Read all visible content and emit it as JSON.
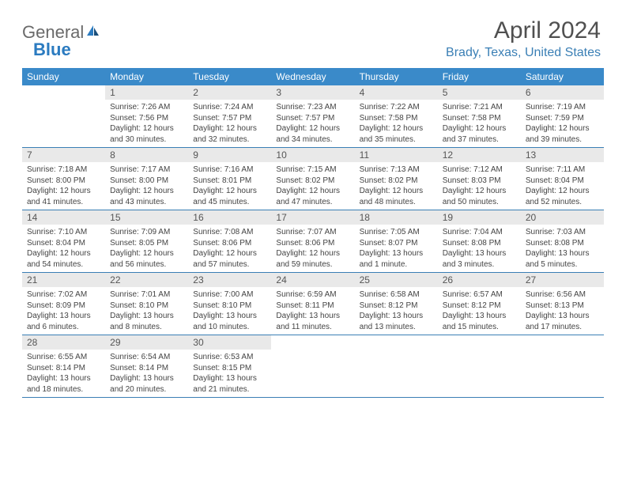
{
  "logo": {
    "part1": "General",
    "part2": "Blue"
  },
  "header": {
    "month": "April 2024",
    "location": "Brady, Texas, United States"
  },
  "colors": {
    "header_band": "#3a8ac9",
    "daynum_bg": "#e9e9e9",
    "location_color": "#3a7fb5",
    "rule_color": "#3a7fb5",
    "title_color": "#505050"
  },
  "dow": [
    "Sunday",
    "Monday",
    "Tuesday",
    "Wednesday",
    "Thursday",
    "Friday",
    "Saturday"
  ],
  "weeks": [
    [
      {
        "num": "",
        "sunrise": "",
        "sunset": "",
        "daylight": ""
      },
      {
        "num": "1",
        "sunrise": "Sunrise: 7:26 AM",
        "sunset": "Sunset: 7:56 PM",
        "daylight": "Daylight: 12 hours and 30 minutes."
      },
      {
        "num": "2",
        "sunrise": "Sunrise: 7:24 AM",
        "sunset": "Sunset: 7:57 PM",
        "daylight": "Daylight: 12 hours and 32 minutes."
      },
      {
        "num": "3",
        "sunrise": "Sunrise: 7:23 AM",
        "sunset": "Sunset: 7:57 PM",
        "daylight": "Daylight: 12 hours and 34 minutes."
      },
      {
        "num": "4",
        "sunrise": "Sunrise: 7:22 AM",
        "sunset": "Sunset: 7:58 PM",
        "daylight": "Daylight: 12 hours and 35 minutes."
      },
      {
        "num": "5",
        "sunrise": "Sunrise: 7:21 AM",
        "sunset": "Sunset: 7:58 PM",
        "daylight": "Daylight: 12 hours and 37 minutes."
      },
      {
        "num": "6",
        "sunrise": "Sunrise: 7:19 AM",
        "sunset": "Sunset: 7:59 PM",
        "daylight": "Daylight: 12 hours and 39 minutes."
      }
    ],
    [
      {
        "num": "7",
        "sunrise": "Sunrise: 7:18 AM",
        "sunset": "Sunset: 8:00 PM",
        "daylight": "Daylight: 12 hours and 41 minutes."
      },
      {
        "num": "8",
        "sunrise": "Sunrise: 7:17 AM",
        "sunset": "Sunset: 8:00 PM",
        "daylight": "Daylight: 12 hours and 43 minutes."
      },
      {
        "num": "9",
        "sunrise": "Sunrise: 7:16 AM",
        "sunset": "Sunset: 8:01 PM",
        "daylight": "Daylight: 12 hours and 45 minutes."
      },
      {
        "num": "10",
        "sunrise": "Sunrise: 7:15 AM",
        "sunset": "Sunset: 8:02 PM",
        "daylight": "Daylight: 12 hours and 47 minutes."
      },
      {
        "num": "11",
        "sunrise": "Sunrise: 7:13 AM",
        "sunset": "Sunset: 8:02 PM",
        "daylight": "Daylight: 12 hours and 48 minutes."
      },
      {
        "num": "12",
        "sunrise": "Sunrise: 7:12 AM",
        "sunset": "Sunset: 8:03 PM",
        "daylight": "Daylight: 12 hours and 50 minutes."
      },
      {
        "num": "13",
        "sunrise": "Sunrise: 7:11 AM",
        "sunset": "Sunset: 8:04 PM",
        "daylight": "Daylight: 12 hours and 52 minutes."
      }
    ],
    [
      {
        "num": "14",
        "sunrise": "Sunrise: 7:10 AM",
        "sunset": "Sunset: 8:04 PM",
        "daylight": "Daylight: 12 hours and 54 minutes."
      },
      {
        "num": "15",
        "sunrise": "Sunrise: 7:09 AM",
        "sunset": "Sunset: 8:05 PM",
        "daylight": "Daylight: 12 hours and 56 minutes."
      },
      {
        "num": "16",
        "sunrise": "Sunrise: 7:08 AM",
        "sunset": "Sunset: 8:06 PM",
        "daylight": "Daylight: 12 hours and 57 minutes."
      },
      {
        "num": "17",
        "sunrise": "Sunrise: 7:07 AM",
        "sunset": "Sunset: 8:06 PM",
        "daylight": "Daylight: 12 hours and 59 minutes."
      },
      {
        "num": "18",
        "sunrise": "Sunrise: 7:05 AM",
        "sunset": "Sunset: 8:07 PM",
        "daylight": "Daylight: 13 hours and 1 minute."
      },
      {
        "num": "19",
        "sunrise": "Sunrise: 7:04 AM",
        "sunset": "Sunset: 8:08 PM",
        "daylight": "Daylight: 13 hours and 3 minutes."
      },
      {
        "num": "20",
        "sunrise": "Sunrise: 7:03 AM",
        "sunset": "Sunset: 8:08 PM",
        "daylight": "Daylight: 13 hours and 5 minutes."
      }
    ],
    [
      {
        "num": "21",
        "sunrise": "Sunrise: 7:02 AM",
        "sunset": "Sunset: 8:09 PM",
        "daylight": "Daylight: 13 hours and 6 minutes."
      },
      {
        "num": "22",
        "sunrise": "Sunrise: 7:01 AM",
        "sunset": "Sunset: 8:10 PM",
        "daylight": "Daylight: 13 hours and 8 minutes."
      },
      {
        "num": "23",
        "sunrise": "Sunrise: 7:00 AM",
        "sunset": "Sunset: 8:10 PM",
        "daylight": "Daylight: 13 hours and 10 minutes."
      },
      {
        "num": "24",
        "sunrise": "Sunrise: 6:59 AM",
        "sunset": "Sunset: 8:11 PM",
        "daylight": "Daylight: 13 hours and 11 minutes."
      },
      {
        "num": "25",
        "sunrise": "Sunrise: 6:58 AM",
        "sunset": "Sunset: 8:12 PM",
        "daylight": "Daylight: 13 hours and 13 minutes."
      },
      {
        "num": "26",
        "sunrise": "Sunrise: 6:57 AM",
        "sunset": "Sunset: 8:12 PM",
        "daylight": "Daylight: 13 hours and 15 minutes."
      },
      {
        "num": "27",
        "sunrise": "Sunrise: 6:56 AM",
        "sunset": "Sunset: 8:13 PM",
        "daylight": "Daylight: 13 hours and 17 minutes."
      }
    ],
    [
      {
        "num": "28",
        "sunrise": "Sunrise: 6:55 AM",
        "sunset": "Sunset: 8:14 PM",
        "daylight": "Daylight: 13 hours and 18 minutes."
      },
      {
        "num": "29",
        "sunrise": "Sunrise: 6:54 AM",
        "sunset": "Sunset: 8:14 PM",
        "daylight": "Daylight: 13 hours and 20 minutes."
      },
      {
        "num": "30",
        "sunrise": "Sunrise: 6:53 AM",
        "sunset": "Sunset: 8:15 PM",
        "daylight": "Daylight: 13 hours and 21 minutes."
      },
      {
        "num": "",
        "sunrise": "",
        "sunset": "",
        "daylight": ""
      },
      {
        "num": "",
        "sunrise": "",
        "sunset": "",
        "daylight": ""
      },
      {
        "num": "",
        "sunrise": "",
        "sunset": "",
        "daylight": ""
      },
      {
        "num": "",
        "sunrise": "",
        "sunset": "",
        "daylight": ""
      }
    ]
  ]
}
